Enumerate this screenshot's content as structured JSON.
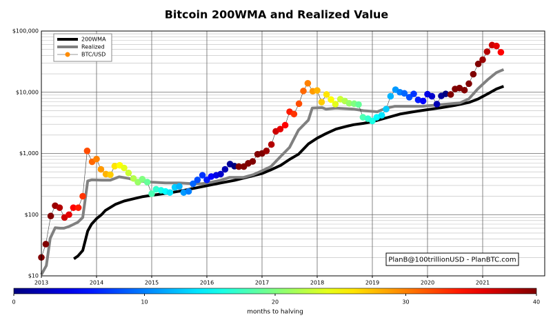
{
  "chart_data": {
    "type": "line",
    "title": "Bitcoin 200WMA and Realized Value",
    "log_y": true,
    "grid": true,
    "legend": "upper left",
    "annotation": "PlanB@100trillionUSD  -  PlanBTC.com",
    "xlim": [
      2013,
      2022.125
    ],
    "xticks": [
      2013,
      2014,
      2015,
      2016,
      2017,
      2018,
      2019,
      2020,
      2021
    ],
    "ylim": [
      10,
      100000
    ],
    "yticks": [
      {
        "value": 10,
        "label": "$10"
      },
      {
        "value": 100,
        "label": "$100"
      },
      {
        "value": 1000,
        "label": "$1,000"
      },
      {
        "value": 10000,
        "label": "$10,000"
      },
      {
        "value": 100000,
        "label": "$100,000"
      }
    ],
    "colorbar": {
      "label": "months to halving",
      "lim": [
        0,
        40
      ],
      "ticks": [
        0,
        10,
        20,
        30,
        40
      ]
    },
    "series": [
      {
        "name": "200WMA",
        "color": "#000000",
        "width": 4,
        "x": [
          2013.59,
          2013.66,
          2013.75,
          2013.84,
          2013.91,
          2014.0,
          2014.09,
          2014.16,
          2014.34,
          2014.5,
          2014.66,
          2014.84,
          2015.0,
          2015.25,
          2015.5,
          2015.75,
          2016.0,
          2016.25,
          2016.5,
          2016.75,
          2017.0,
          2017.16,
          2017.34,
          2017.5,
          2017.66,
          2017.84,
          2018.0,
          2018.16,
          2018.34,
          2018.5,
          2018.66,
          2018.84,
          2019.0,
          2019.25,
          2019.5,
          2019.75,
          2020.0,
          2020.25,
          2020.5,
          2020.75,
          2020.91,
          2021.09,
          2021.25,
          2021.38
        ],
        "values": [
          19,
          21,
          26,
          54,
          70,
          86,
          100,
          117,
          147,
          167,
          181,
          197,
          207,
          222,
          241,
          268,
          297,
          329,
          364,
          414,
          470,
          540,
          640,
          800,
          970,
          1430,
          1780,
          2110,
          2500,
          2730,
          2950,
          3100,
          3300,
          3800,
          4400,
          4800,
          5200,
          5600,
          6100,
          6800,
          7700,
          9400,
          11300,
          12500
        ]
      },
      {
        "name": "Realized",
        "color": "#808080",
        "width": 4,
        "x": [
          2013.0,
          2013.09,
          2013.16,
          2013.25,
          2013.34,
          2013.41,
          2013.5,
          2013.66,
          2013.75,
          2013.84,
          2013.91,
          2014.09,
          2014.25,
          2014.41,
          2014.59,
          2014.75,
          2015.0,
          2015.25,
          2015.5,
          2015.75,
          2015.91,
          2016.09,
          2016.25,
          2016.41,
          2016.66,
          2016.84,
          2017.0,
          2017.16,
          2017.34,
          2017.5,
          2017.66,
          2017.84,
          2017.91,
          2018.09,
          2018.16,
          2018.34,
          2018.66,
          2018.84,
          2019.09,
          2019.25,
          2019.41,
          2019.66,
          2019.91,
          2020.25,
          2020.59,
          2020.75,
          2020.91,
          2021.09,
          2021.25,
          2021.38
        ],
        "values": [
          10.5,
          14.7,
          41,
          61,
          60,
          60,
          64,
          75,
          90,
          355,
          370,
          365,
          365,
          415,
          390,
          355,
          340,
          330,
          330,
          320,
          320,
          340,
          365,
          405,
          405,
          450,
          520,
          610,
          900,
          1260,
          2400,
          3500,
          5500,
          5600,
          5300,
          5500,
          5300,
          5000,
          4800,
          5500,
          5900,
          5900,
          5900,
          6300,
          6700,
          7800,
          11300,
          16000,
          21000,
          23500
        ]
      },
      {
        "name": "BTC/USD",
        "color": "#ff8c00",
        "width": 0.6,
        "marker": "o",
        "x": [
          2013.0,
          2013.08,
          2013.17,
          2013.25,
          2013.33,
          2013.42,
          2013.5,
          2013.58,
          2013.67,
          2013.75,
          2013.83,
          2013.92,
          2014.0,
          2014.08,
          2014.17,
          2014.25,
          2014.33,
          2014.42,
          2014.5,
          2014.58,
          2014.67,
          2014.75,
          2014.83,
          2014.92,
          2015.0,
          2015.08,
          2015.17,
          2015.25,
          2015.33,
          2015.42,
          2015.5,
          2015.58,
          2015.67,
          2015.75,
          2015.83,
          2015.92,
          2016.0,
          2016.08,
          2016.17,
          2016.25,
          2016.33,
          2016.42,
          2016.5,
          2016.58,
          2016.67,
          2016.75,
          2016.83,
          2016.92,
          2017.0,
          2017.08,
          2017.17,
          2017.25,
          2017.33,
          2017.42,
          2017.5,
          2017.58,
          2017.67,
          2017.75,
          2017.83,
          2017.92,
          2018.0,
          2018.08,
          2018.17,
          2018.25,
          2018.33,
          2018.42,
          2018.5,
          2018.58,
          2018.67,
          2018.75,
          2018.83,
          2018.92,
          2019.0,
          2019.08,
          2019.17,
          2019.25,
          2019.33,
          2019.42,
          2019.5,
          2019.58,
          2019.67,
          2019.75,
          2019.83,
          2019.92,
          2020.0,
          2020.08,
          2020.17,
          2020.25,
          2020.33,
          2020.42,
          2020.5,
          2020.58,
          2020.67,
          2020.75,
          2020.83,
          2020.92,
          2021.0,
          2021.08,
          2021.17,
          2021.25,
          2021.33
        ],
        "values": [
          20,
          33,
          95,
          140,
          130,
          90,
          100,
          130,
          130,
          200,
          1100,
          730,
          810,
          550,
          460,
          450,
          620,
          640,
          580,
          480,
          390,
          340,
          380,
          340,
          220,
          260,
          250,
          240,
          230,
          280,
          290,
          230,
          240,
          320,
          370,
          440,
          370,
          420,
          440,
          460,
          550,
          670,
          620,
          610,
          610,
          690,
          740,
          970,
          1000,
          1100,
          1400,
          2300,
          2500,
          2900,
          4800,
          4400,
          6500,
          10500,
          14000,
          10400,
          10700,
          6900,
          9200,
          7600,
          6400,
          7700,
          7200,
          6600,
          6500,
          6300,
          3900,
          3700,
          3400,
          3900,
          4200,
          5300,
          8600,
          11000,
          10000,
          9600,
          8300,
          9400,
          7500,
          7200,
          9300,
          8600,
          6400,
          8700,
          9400,
          9200,
          11300,
          11700,
          10800,
          13800,
          19700,
          29000,
          34000,
          46000,
          59000,
          57000,
          45000
        ],
        "color_values": [
          42,
          41,
          40,
          39,
          38,
          37,
          36,
          35,
          34,
          33,
          32,
          31,
          30,
          29,
          28,
          27,
          26,
          25,
          24,
          23,
          22,
          21,
          20,
          19,
          18,
          17,
          16,
          15,
          14,
          13,
          12,
          11,
          10,
          9,
          8,
          7,
          6,
          5,
          4,
          3,
          2,
          1,
          0,
          45,
          44,
          43,
          42,
          41,
          40,
          39,
          38,
          37,
          36,
          35,
          34,
          33,
          32,
          31,
          30,
          29,
          28,
          27,
          26,
          25,
          24,
          23,
          22,
          21,
          20,
          19,
          18,
          17,
          16,
          15,
          14,
          13,
          12,
          11,
          10,
          9,
          8,
          7,
          6,
          5,
          4,
          3,
          2,
          1,
          0,
          46,
          45,
          44,
          43,
          42,
          41,
          40,
          39,
          38,
          37,
          36,
          35
        ]
      }
    ]
  }
}
